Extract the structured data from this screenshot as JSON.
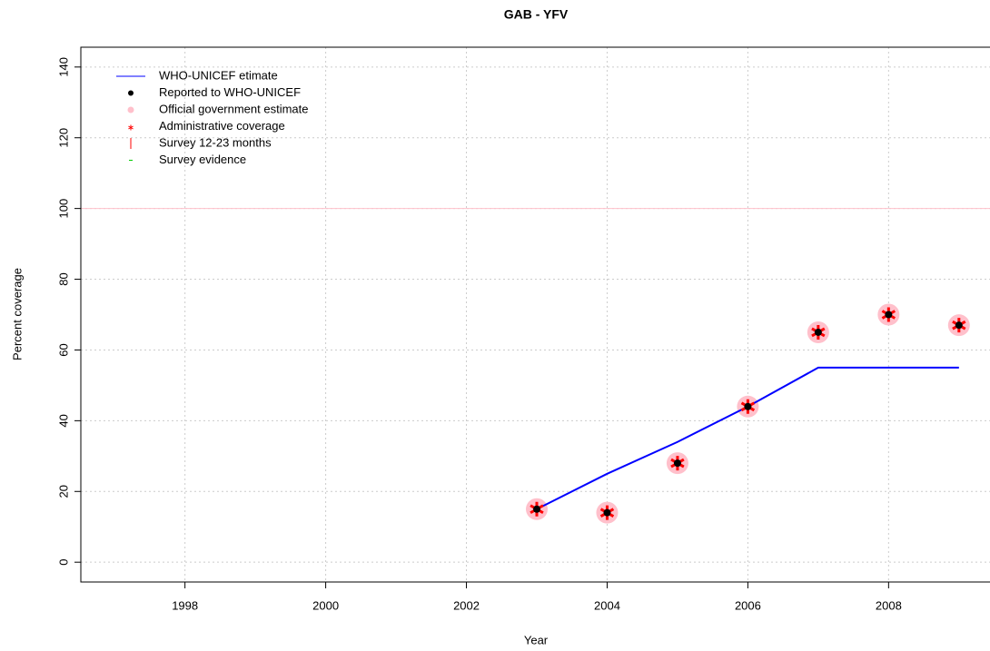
{
  "chart_data": {
    "type": "line",
    "title": "GAB  -  YFV",
    "x_label": "Year",
    "y_label": "Percent coverage",
    "x": [
      2003,
      2004,
      2005,
      2006,
      2007,
      2008,
      2009
    ],
    "series": [
      {
        "name": "WHO-UNICEF etimate",
        "color": "#0000ff",
        "style": "line",
        "values": [
          15,
          25,
          34,
          44,
          55,
          55,
          55
        ]
      },
      {
        "name": "Reported to WHO-UNICEF",
        "color": "#000000",
        "style": "dot",
        "values": [
          15,
          14,
          28,
          44,
          65,
          70,
          67
        ]
      },
      {
        "name": "Official government estimate",
        "color": "#ffc0cb",
        "style": "circle",
        "values": [
          15,
          14,
          28,
          44,
          65,
          70,
          67
        ]
      },
      {
        "name": "Administrative coverage",
        "color": "#ff0000",
        "style": "star",
        "values": [
          15,
          14,
          28,
          44,
          65,
          70,
          67
        ]
      },
      {
        "name": "Survey 12-23 months",
        "color": "#ff0000",
        "style": "bar",
        "values": [
          null,
          null,
          null,
          null,
          null,
          null,
          null
        ]
      },
      {
        "name": "Survey evidence",
        "color": "#00cc00",
        "style": "dash",
        "values": [
          null,
          null,
          null,
          null,
          null,
          null,
          null
        ]
      }
    ],
    "hline": {
      "value": 100,
      "color": "#ffc0cb"
    },
    "xlim": [
      1996.52,
      2009.48
    ],
    "ylim": [
      -5.6,
      145.6
    ],
    "xticks": [
      1998,
      2000,
      2002,
      2004,
      2006,
      2008
    ],
    "yticks": [
      0,
      20,
      40,
      60,
      80,
      100,
      120,
      140
    ],
    "grid": true,
    "legend": "top-left"
  }
}
